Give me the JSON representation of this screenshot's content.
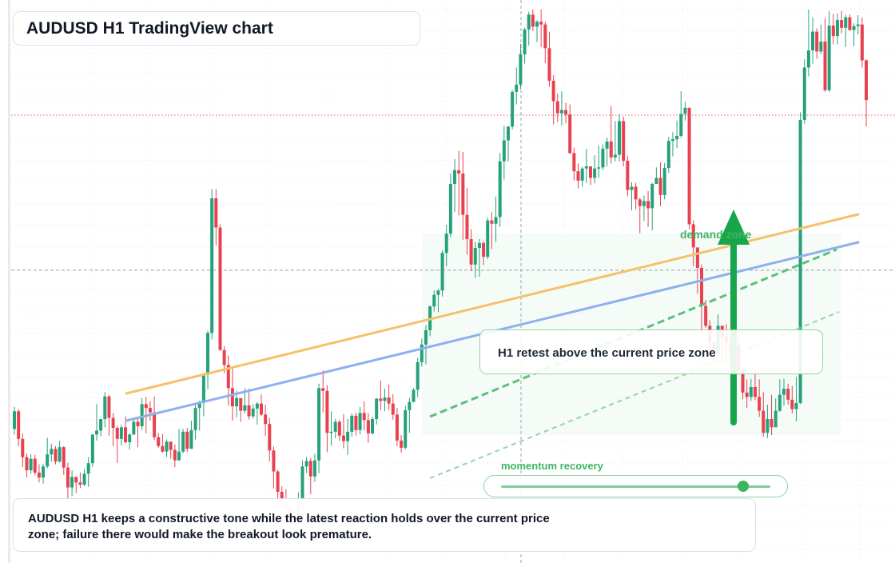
{
  "header": {
    "title": "AUDUSD H1 TradingView chart"
  },
  "annotations": {
    "demand_zone_label": "demand zone",
    "retest_note": "H1 retest above the current price zone",
    "momentum_label": "momentum recovery",
    "momentum_level": 0.9
  },
  "commentary": {
    "line1": "AUDUSD H1 keeps a constructive tone while the latest reaction holds over the current price",
    "line2": "zone; failure there would make the breakout look premature."
  },
  "colors": {
    "bull": "#26a17c",
    "bear": "#e8414f",
    "orange_ma": "#f5c26b",
    "blue_ma": "#8fb0ee",
    "accent_green": "#19a64a",
    "price_line": "#e8414f"
  },
  "chart_data": {
    "type": "candlestick",
    "symbol": "AUDUSD",
    "timeframe": "H1",
    "y_unit": "relative price",
    "ylim": [
      0,
      100
    ],
    "candles": [
      [
        24.0,
        27.2,
        23.0,
        28.0
      ],
      [
        27.2,
        22.2,
        20.9,
        27.6
      ],
      [
        22.2,
        18.9,
        17.1,
        23.2
      ],
      [
        18.9,
        16.5,
        15.2,
        19.5
      ],
      [
        16.5,
        18.6,
        15.9,
        19.4
      ],
      [
        18.6,
        16.1,
        15.6,
        19.3
      ],
      [
        16.1,
        15.2,
        14.3,
        17.6
      ],
      [
        15.2,
        17.2,
        14.1,
        17.7
      ],
      [
        17.2,
        19.4,
        16.9,
        22.4
      ],
      [
        19.4,
        20.4,
        18.1,
        21.3
      ],
      [
        20.4,
        18.1,
        17.6,
        20.9
      ],
      [
        18.1,
        20.7,
        17.9,
        21.8
      ],
      [
        20.7,
        17.0,
        15.7,
        20.9
      ],
      [
        17.0,
        13.4,
        10.4,
        17.9
      ],
      [
        13.4,
        15.3,
        11.8,
        16.5
      ],
      [
        15.3,
        14.3,
        12.4,
        15.4
      ],
      [
        14.3,
        13.9,
        13.3,
        16.1
      ],
      [
        13.9,
        15.9,
        13.6,
        16.7
      ],
      [
        15.9,
        17.8,
        13.5,
        18.9
      ],
      [
        17.8,
        23.0,
        17.1,
        23.0
      ],
      [
        23.0,
        23.7,
        21.9,
        28.5
      ],
      [
        23.7,
        25.8,
        22.7,
        25.8
      ],
      [
        25.8,
        29.9,
        24.3,
        30.7
      ],
      [
        29.9,
        26.0,
        22.8,
        30.2
      ],
      [
        26.0,
        24.2,
        20.9,
        26.9
      ],
      [
        24.2,
        22.2,
        17.8,
        24.6
      ],
      [
        22.2,
        24.3,
        21.0,
        24.8
      ],
      [
        24.3,
        21.6,
        21.4,
        26.3
      ],
      [
        21.6,
        23.0,
        20.3,
        23.2
      ],
      [
        23.0,
        25.3,
        22.9,
        26.1
      ],
      [
        25.3,
        24.5,
        20.7,
        26.1
      ],
      [
        24.5,
        28.5,
        23.8,
        29.6
      ],
      [
        28.5,
        27.8,
        23.2,
        29.8
      ],
      [
        27.8,
        27.0,
        25.5,
        29.0
      ],
      [
        27.0,
        22.5,
        22.0,
        29.9
      ],
      [
        22.5,
        20.9,
        20.6,
        23.3
      ],
      [
        20.9,
        19.9,
        19.7,
        23.1
      ],
      [
        19.9,
        21.7,
        18.9,
        22.1
      ],
      [
        21.7,
        20.2,
        18.6,
        21.0
      ],
      [
        20.2,
        18.3,
        17.1,
        21.2
      ],
      [
        18.3,
        19.9,
        18.3,
        24.0
      ],
      [
        19.9,
        23.5,
        19.6,
        24.0
      ],
      [
        23.5,
        20.4,
        19.8,
        24.2
      ],
      [
        20.4,
        23.8,
        20.4,
        25.5
      ],
      [
        23.8,
        27.8,
        22.1,
        28.6
      ],
      [
        27.8,
        28.7,
        23.7,
        29.1
      ],
      [
        28.7,
        33.8,
        26.3,
        33.9
      ],
      [
        33.8,
        41.4,
        31.2,
        41.8
      ],
      [
        41.4,
        65.8,
        40.2,
        67.5
      ],
      [
        65.8,
        60.5,
        57.3,
        67.5
      ],
      [
        60.5,
        38.3,
        38.2,
        61.1
      ],
      [
        38.3,
        35.6,
        34.1,
        39.0
      ],
      [
        35.6,
        31.4,
        28.2,
        37.3
      ],
      [
        31.4,
        28.1,
        25.5,
        35.2
      ],
      [
        28.1,
        29.6,
        26.1,
        30.9
      ],
      [
        29.6,
        27.3,
        25.3,
        29.5
      ],
      [
        27.3,
        28.3,
        26.8,
        31.4
      ],
      [
        28.3,
        26.3,
        25.7,
        31.3
      ],
      [
        26.3,
        27.7,
        25.9,
        28.5
      ],
      [
        27.7,
        28.6,
        24.8,
        28.9
      ],
      [
        28.6,
        26.6,
        26.3,
        30.3
      ],
      [
        26.6,
        24.9,
        22.7,
        28.4
      ],
      [
        24.9,
        20.1,
        18.1,
        26.0
      ],
      [
        20.1,
        16.3,
        13.2,
        20.8
      ],
      [
        16.3,
        12.6,
        10.0,
        16.6
      ],
      [
        12.6,
        10.6,
        9.8,
        13.6
      ],
      [
        10.6,
        9.6,
        8.9,
        13.1
      ],
      [
        9.6,
        7.8,
        6.2,
        10.7
      ],
      [
        7.8,
        7.0,
        5.8,
        9.7
      ],
      [
        7.0,
        11.3,
        6.5,
        12.5
      ],
      [
        11.3,
        17.2,
        10.6,
        18.3
      ],
      [
        17.2,
        18.2,
        16.0,
        18.9
      ],
      [
        18.2,
        15.4,
        12.2,
        18.7
      ],
      [
        15.4,
        18.3,
        14.4,
        19.5
      ],
      [
        18.3,
        31.4,
        16.0,
        32.2
      ],
      [
        31.4,
        30.9,
        27.0,
        34.6
      ],
      [
        30.9,
        23.3,
        19.8,
        31.9
      ],
      [
        23.3,
        23.5,
        21.0,
        27.2
      ],
      [
        23.5,
        25.3,
        22.3,
        25.8
      ],
      [
        25.3,
        22.8,
        21.9,
        25.6
      ],
      [
        22.8,
        21.8,
        20.5,
        26.7
      ],
      [
        21.8,
        23.5,
        19.3,
        25.8
      ],
      [
        23.5,
        26.4,
        22.6,
        26.8
      ],
      [
        26.4,
        23.8,
        22.8,
        27.0
      ],
      [
        23.8,
        26.9,
        23.0,
        28.0
      ],
      [
        26.9,
        25.6,
        23.7,
        29.0
      ],
      [
        25.6,
        23.2,
        21.5,
        26.9
      ],
      [
        23.2,
        25.8,
        23.0,
        26.2
      ],
      [
        25.8,
        29.5,
        24.8,
        29.6
      ],
      [
        29.5,
        29.1,
        27.4,
        32.8
      ],
      [
        29.1,
        29.7,
        27.2,
        31.3
      ],
      [
        29.7,
        28.6,
        27.4,
        32.1
      ],
      [
        28.6,
        26.6,
        25.7,
        30.3
      ],
      [
        26.6,
        21.9,
        20.9,
        27.8
      ],
      [
        21.9,
        20.6,
        19.7,
        22.9
      ],
      [
        20.6,
        27.4,
        20.3,
        28.2
      ],
      [
        27.4,
        28.9,
        23.3,
        29.6
      ],
      [
        28.9,
        31.1,
        28.8,
        31.4
      ],
      [
        31.1,
        36.1,
        29.8,
        36.9
      ],
      [
        36.1,
        39.3,
        35.3,
        40.4
      ],
      [
        39.3,
        41.9,
        35.7,
        42.8
      ],
      [
        41.9,
        46.2,
        40.8,
        46.4
      ],
      [
        46.2,
        48.3,
        45.3,
        49.1
      ],
      [
        48.3,
        49.1,
        45.2,
        49.3
      ],
      [
        49.1,
        55.9,
        48.0,
        56.4
      ],
      [
        55.9,
        59.4,
        53.5,
        61.0
      ],
      [
        59.4,
        68.4,
        58.8,
        70.3
      ],
      [
        68.4,
        70.9,
        63.3,
        72.9
      ],
      [
        70.9,
        70.3,
        62.7,
        74.4
      ],
      [
        70.3,
        62.8,
        58.3,
        74.2
      ],
      [
        62.8,
        58.4,
        55.6,
        67.7
      ],
      [
        58.4,
        53.8,
        52.6,
        60.2
      ],
      [
        53.8,
        56.8,
        51.4,
        57.9
      ],
      [
        56.8,
        57.7,
        51.6,
        58.4
      ],
      [
        57.7,
        55.2,
        53.7,
        58.0
      ],
      [
        55.2,
        61.8,
        54.8,
        62.3
      ],
      [
        61.8,
        61.2,
        56.6,
        63.3
      ],
      [
        61.2,
        62.4,
        57.9,
        66.1
      ],
      [
        62.4,
        72.5,
        60.6,
        74.0
      ],
      [
        72.5,
        76.3,
        69.2,
        78.9
      ],
      [
        76.3,
        78.8,
        72.5,
        78.9
      ],
      [
        78.8,
        85.1,
        78.3,
        85.4
      ],
      [
        85.1,
        86.4,
        82.8,
        89.5
      ],
      [
        86.4,
        91.9,
        85.6,
        93.8
      ],
      [
        91.9,
        96.4,
        90.2,
        96.7
      ],
      [
        96.4,
        99.1,
        93.5,
        99.6
      ],
      [
        99.1,
        96.9,
        96.1,
        100.0
      ],
      [
        96.9,
        97.8,
        94.1,
        98.1
      ],
      [
        97.8,
        97.3,
        93.2,
        100.0
      ],
      [
        97.3,
        93.0,
        90.3,
        97.8
      ],
      [
        93.0,
        87.1,
        86.0,
        96.0
      ],
      [
        87.1,
        83.4,
        79.2,
        88.1
      ],
      [
        83.4,
        81.2,
        79.6,
        84.8
      ],
      [
        81.2,
        81.8,
        79.0,
        85.2
      ],
      [
        81.8,
        81.0,
        79.4,
        83.1
      ],
      [
        81.0,
        74.0,
        73.8,
        82.8
      ],
      [
        74.0,
        70.7,
        69.0,
        75.0
      ],
      [
        70.7,
        69.0,
        67.6,
        72.1
      ],
      [
        69.0,
        71.2,
        67.9,
        71.5
      ],
      [
        71.2,
        71.6,
        68.6,
        74.8
      ],
      [
        71.6,
        69.5,
        68.2,
        71.5
      ],
      [
        69.5,
        71.2,
        68.5,
        73.6
      ],
      [
        71.2,
        71.4,
        69.5,
        75.4
      ],
      [
        71.4,
        74.8,
        70.9,
        75.6
      ],
      [
        74.8,
        76.1,
        71.6,
        76.8
      ],
      [
        76.1,
        73.2,
        72.1,
        82.5
      ],
      [
        73.2,
        73.7,
        72.5,
        79.8
      ],
      [
        73.7,
        79.8,
        72.5,
        81.1
      ],
      [
        79.8,
        72.6,
        71.6,
        80.6
      ],
      [
        72.6,
        67.3,
        66.2,
        73.5
      ],
      [
        67.3,
        67.9,
        63.6,
        68.7
      ],
      [
        67.9,
        65.6,
        63.8,
        68.6
      ],
      [
        65.6,
        64.4,
        59.5,
        65.9
      ],
      [
        64.4,
        65.3,
        61.7,
        66.3
      ],
      [
        65.3,
        64.0,
        60.6,
        67.1
      ],
      [
        64.0,
        68.4,
        60.0,
        68.6
      ],
      [
        68.4,
        69.5,
        68.5,
        71.4
      ],
      [
        69.5,
        66.4,
        64.4,
        72.3
      ],
      [
        66.4,
        71.3,
        65.6,
        72.2
      ],
      [
        71.3,
        76.2,
        70.4,
        76.9
      ],
      [
        76.2,
        76.5,
        73.4,
        77.8
      ],
      [
        76.5,
        77.1,
        74.9,
        79.9
      ],
      [
        77.1,
        81.1,
        76.8,
        85.2
      ],
      [
        81.1,
        82.2,
        79.9,
        83.3
      ],
      [
        82.2,
        61.1,
        60.2,
        82.2
      ],
      [
        61.1,
        56.9,
        53.5,
        61.8
      ],
      [
        56.9,
        53.2,
        48.5,
        56.9
      ],
      [
        53.2,
        46.3,
        41.6,
        53.8
      ],
      [
        46.3,
        42.7,
        42.3,
        47.4
      ],
      [
        42.7,
        39.6,
        37.0,
        43.7
      ],
      [
        39.6,
        37.6,
        35.7,
        39.9
      ],
      [
        37.6,
        42.7,
        37.4,
        44.8
      ],
      [
        42.7,
        40.7,
        36.0,
        42.7
      ],
      [
        40.7,
        39.6,
        35.5,
        43.0
      ],
      [
        39.6,
        38.3,
        35.9,
        41.2
      ],
      [
        38.3,
        39.2,
        34.9,
        42.1
      ],
      [
        39.2,
        34.6,
        34.0,
        40.2
      ],
      [
        34.6,
        30.6,
        29.4,
        35.1
      ],
      [
        30.6,
        29.8,
        27.8,
        33.0
      ],
      [
        29.8,
        31.6,
        29.1,
        33.1
      ],
      [
        31.6,
        29.8,
        29.2,
        34.5
      ],
      [
        29.8,
        27.3,
        26.2,
        33.0
      ],
      [
        27.3,
        23.3,
        22.6,
        30.7
      ],
      [
        23.3,
        25.8,
        22.4,
        28.4
      ],
      [
        25.8,
        24.3,
        22.9,
        30.2
      ],
      [
        24.3,
        27.3,
        24.5,
        29.5
      ],
      [
        27.3,
        30.2,
        27.1,
        33.0
      ],
      [
        30.2,
        31.3,
        28.2,
        33.1
      ],
      [
        31.3,
        29.3,
        28.4,
        32.2
      ],
      [
        29.3,
        27.6,
        26.8,
        31.8
      ],
      [
        27.6,
        28.7,
        25.4,
        33.4
      ],
      [
        28.7,
        80.0,
        28.5,
        81.4
      ],
      [
        80.0,
        89.5,
        79.3,
        91.0
      ],
      [
        89.5,
        92.6,
        87.9,
        100.0
      ],
      [
        92.6,
        96.0,
        90.2,
        98.6
      ],
      [
        96.0,
        92.4,
        91.1,
        96.6
      ],
      [
        92.4,
        94.2,
        91.9,
        97.3
      ],
      [
        94.2,
        85.4,
        85.1,
        98.4
      ],
      [
        85.4,
        97.1,
        85.1,
        99.7
      ],
      [
        97.1,
        95.2,
        93.7,
        99.2
      ],
      [
        95.2,
        98.1,
        93.7,
        99.3
      ],
      [
        98.1,
        96.7,
        95.7,
        99.8
      ],
      [
        96.7,
        98.6,
        93.2,
        99.1
      ],
      [
        98.6,
        96.3,
        96.2,
        99.1
      ],
      [
        96.3,
        97.0,
        93.4,
        97.5
      ],
      [
        97.0,
        97.3,
        95.5,
        99.0
      ],
      [
        97.3,
        90.8,
        89.5,
        98.6
      ],
      [
        90.8,
        83.6,
        78.8,
        91.0
      ]
    ]
  }
}
